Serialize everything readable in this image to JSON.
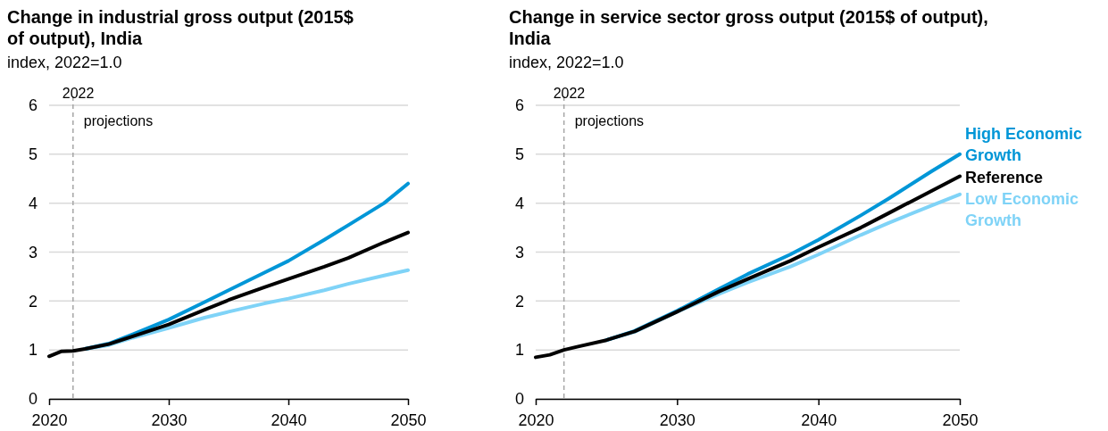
{
  "chart_data": [
    {
      "type": "line",
      "title": "Change in industrial gross output (2015$ of output), India",
      "subtitle": "index, 2022=1.0",
      "x": [
        2020,
        2021,
        2022,
        2023,
        2025,
        2027,
        2030,
        2033,
        2035,
        2038,
        2040,
        2043,
        2045,
        2048,
        2050
      ],
      "xlim": [
        2020,
        2050
      ],
      "xticks": [
        2020,
        2030,
        2040,
        2050
      ],
      "ylim": [
        0,
        6
      ],
      "yticks": [
        0,
        1,
        2,
        3,
        4,
        5,
        6
      ],
      "grid": "y",
      "ref_lines": [
        {
          "axis": "x",
          "value": 2022,
          "label": "2022",
          "color": "#a6a6a6",
          "line_style": "dashed"
        }
      ],
      "annotations": [
        "projections"
      ],
      "series": [
        {
          "color": "#7fd3f7",
          "values": [
            null,
            null,
            null,
            1.02,
            1.1,
            1.25,
            1.45,
            1.66,
            1.78,
            1.95,
            2.05,
            2.22,
            2.35,
            2.52,
            2.63
          ]
        },
        {
          "color": "#0096d7",
          "values": [
            null,
            null,
            null,
            1.02,
            1.13,
            1.32,
            1.62,
            1.98,
            2.22,
            2.58,
            2.82,
            3.25,
            3.55,
            4.0,
            4.4
          ]
        },
        {
          "color": "#000000",
          "values": [
            0.87,
            0.97,
            0.98,
            1.02,
            1.12,
            1.28,
            1.52,
            1.82,
            2.02,
            2.28,
            2.45,
            2.7,
            2.88,
            3.2,
            3.4
          ]
        }
      ]
    },
    {
      "type": "line",
      "title": "Change in service sector gross output (2015$ of output), India",
      "subtitle": "index, 2022=1.0",
      "x": [
        2020,
        2021,
        2022,
        2023,
        2025,
        2027,
        2030,
        2033,
        2035,
        2038,
        2040,
        2043,
        2045,
        2048,
        2050
      ],
      "xlim": [
        2020,
        2050
      ],
      "xticks": [
        2020,
        2030,
        2040,
        2050
      ],
      "ylim": [
        0,
        6
      ],
      "yticks": [
        0,
        1,
        2,
        3,
        4,
        5,
        6
      ],
      "grid": "y",
      "ref_lines": [
        {
          "axis": "x",
          "value": 2022,
          "label": "2022",
          "color": "#a6a6a6",
          "line_style": "dashed"
        }
      ],
      "annotations": [
        "projections"
      ],
      "series": [
        {
          "name": "Low Economic Growth",
          "color": "#7fd3f7",
          "values": [
            null,
            null,
            null,
            null,
            1.2,
            1.37,
            1.78,
            2.15,
            2.38,
            2.7,
            2.95,
            3.35,
            3.6,
            3.95,
            4.18
          ]
        },
        {
          "name": "High Economic Growth",
          "color": "#0096d7",
          "values": [
            null,
            null,
            null,
            null,
            1.2,
            1.39,
            1.8,
            2.25,
            2.55,
            2.95,
            3.25,
            3.75,
            4.1,
            4.65,
            5.0
          ]
        },
        {
          "name": "Reference",
          "color": "#000000",
          "values": [
            0.85,
            0.9,
            1.0,
            1.07,
            1.2,
            1.38,
            1.78,
            2.2,
            2.45,
            2.82,
            3.1,
            3.5,
            3.8,
            4.25,
            4.55
          ]
        }
      ]
    }
  ]
}
